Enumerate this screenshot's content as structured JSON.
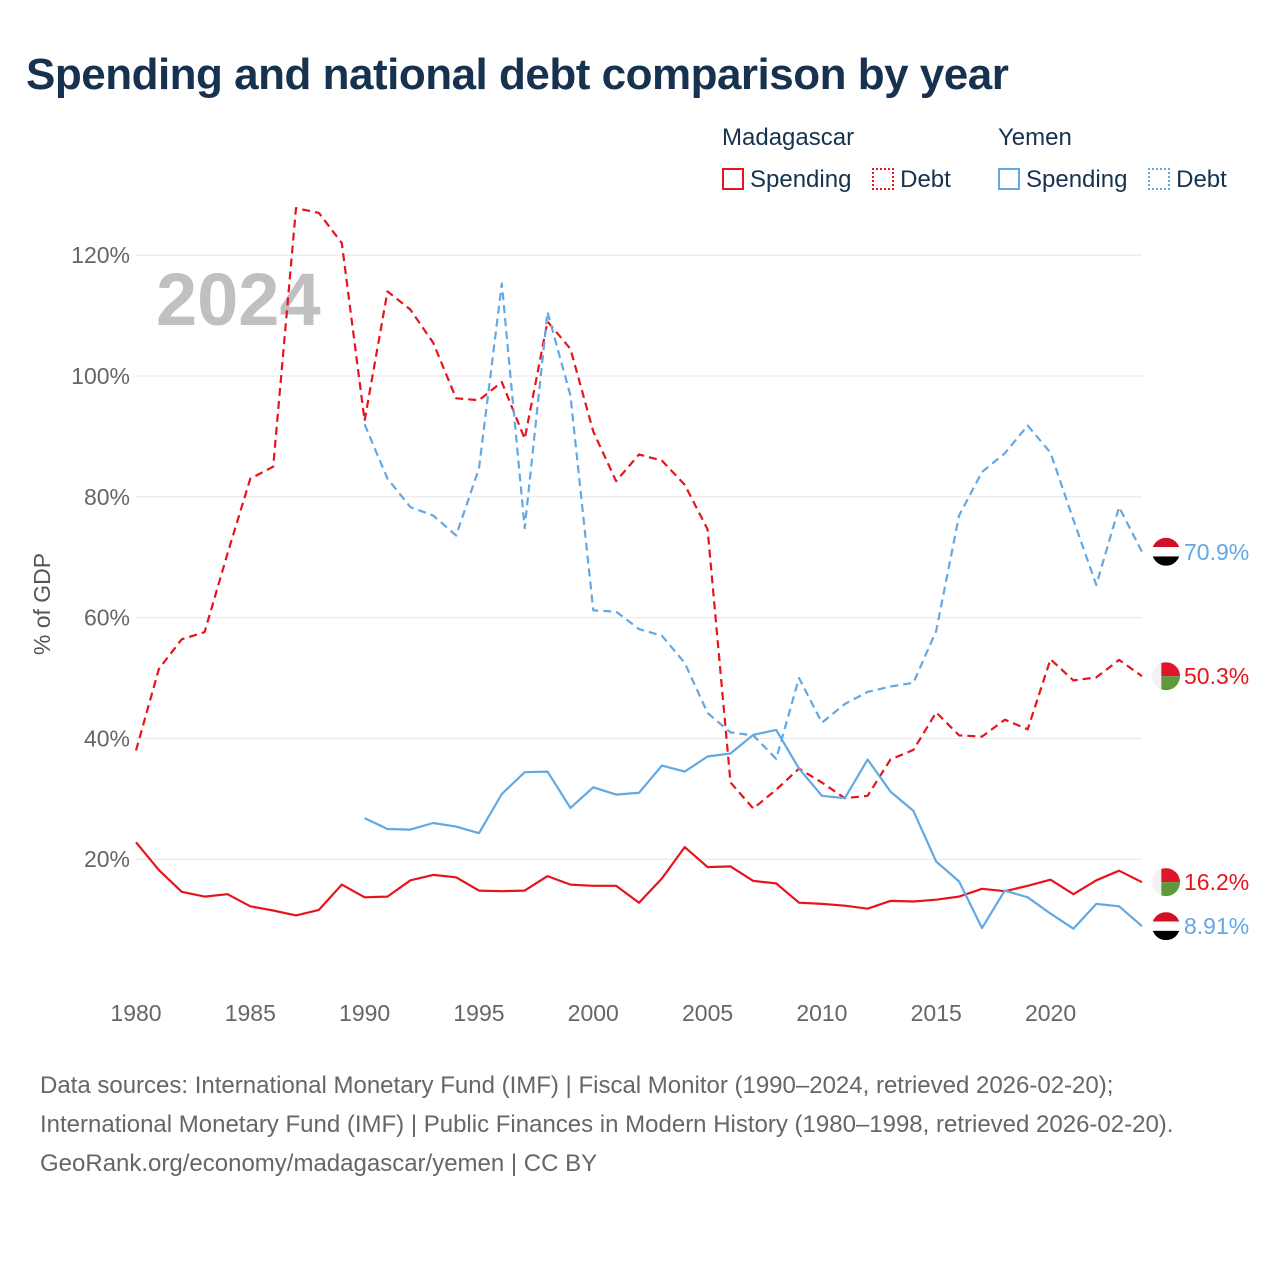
{
  "title": "Spending and national debt comparison by year",
  "colors": {
    "madagascar": "#e8141c",
    "yemen": "#62a8e4",
    "title": "#17324f",
    "grid": "#e6e6e6",
    "year_watermark": "#c0c0c0"
  },
  "legend": {
    "groups": [
      {
        "country": "Madagascar",
        "color": "#e8141c",
        "items": [
          {
            "label": "Spending",
            "style": "solid"
          },
          {
            "label": "Debt",
            "style": "dotted"
          }
        ]
      },
      {
        "country": "Yemen",
        "color": "#62a8e4",
        "items": [
          {
            "label": "Spending",
            "style": "solid"
          },
          {
            "label": "Debt",
            "style": "dotted"
          }
        ]
      }
    ]
  },
  "chart_data": {
    "type": "line",
    "title": "Spending and national debt comparison by year",
    "year_label": "2024",
    "ylabel": "% of GDP",
    "xlabel": "",
    "xlim": [
      1980,
      2024
    ],
    "ylim": [
      0,
      125
    ],
    "x_ticks": [
      1980,
      1985,
      1990,
      1995,
      2000,
      2005,
      2010,
      2015,
      2020
    ],
    "y_ticks": [
      20,
      40,
      60,
      80,
      100,
      120
    ],
    "y_tick_labels": [
      "20%",
      "40%",
      "60%",
      "80%",
      "100%",
      "120%"
    ],
    "grid": true,
    "series": [
      {
        "name": "Madagascar Debt",
        "country": "Madagascar",
        "measure": "Debt",
        "color": "#e8141c",
        "dash": "dashed",
        "x": [
          1980,
          1981,
          1982,
          1983,
          1984,
          1985,
          1986,
          1987,
          1988,
          1989,
          1990,
          1991,
          1992,
          1993,
          1994,
          1995,
          1996,
          1997,
          1998,
          1999,
          2000,
          2001,
          2002,
          2003,
          2004,
          2005,
          2006,
          2007,
          2008,
          2009,
          2010,
          2011,
          2012,
          2013,
          2014,
          2015,
          2016,
          2017,
          2018,
          2019,
          2020,
          2021,
          2022,
          2023,
          2024
        ],
        "values": [
          38.0,
          51.5,
          56.4,
          57.6,
          70.6,
          83.0,
          85.0,
          127.8,
          127.0,
          122.0,
          92.6,
          114.0,
          111.0,
          105.5,
          96.3,
          96.0,
          99.0,
          89.6,
          109.0,
          104.5,
          90.8,
          82.6,
          87.0,
          86.0,
          82.0,
          74.6,
          32.7,
          28.4,
          31.5,
          35.0,
          32.7,
          30.1,
          30.5,
          36.5,
          38.1,
          44.3,
          40.5,
          40.3,
          43.1,
          41.5,
          53.1,
          49.6,
          50.1,
          53.0,
          50.3
        ],
        "end_label": "50.3%"
      },
      {
        "name": "Yemen Debt",
        "country": "Yemen",
        "measure": "Debt",
        "color": "#62a8e4",
        "dash": "dashed",
        "x": [
          1990,
          1991,
          1992,
          1993,
          1994,
          1995,
          1996,
          1997,
          1998,
          1999,
          2000,
          2001,
          2002,
          2003,
          2004,
          2005,
          2006,
          2007,
          2008,
          2009,
          2010,
          2011,
          2012,
          2013,
          2014,
          2015,
          2016,
          2017,
          2018,
          2019,
          2020,
          2021,
          2022,
          2023,
          2024
        ],
        "values": [
          92.0,
          83.0,
          78.3,
          76.9,
          73.6,
          84.7,
          115.3,
          74.8,
          110.6,
          96.8,
          61.2,
          61.0,
          58.1,
          57.0,
          52.5,
          44.2,
          41.0,
          40.5,
          36.6,
          50.0,
          42.6,
          45.7,
          47.7,
          48.6,
          49.2,
          57.8,
          76.9,
          84.1,
          87.2,
          91.8,
          87.3,
          76.2,
          65.4,
          78.3,
          70.9
        ],
        "end_label": "70.9%"
      },
      {
        "name": "Madagascar Spending",
        "country": "Madagascar",
        "measure": "Spending",
        "color": "#e8141c",
        "dash": "solid",
        "x": [
          1980,
          1981,
          1982,
          1983,
          1984,
          1985,
          1986,
          1987,
          1988,
          1989,
          1990,
          1991,
          1992,
          1993,
          1994,
          1995,
          1996,
          1997,
          1998,
          1999,
          2000,
          2001,
          2002,
          2003,
          2004,
          2005,
          2006,
          2007,
          2008,
          2009,
          2010,
          2011,
          2012,
          2013,
          2014,
          2015,
          2016,
          2017,
          2018,
          2019,
          2020,
          2021,
          2022,
          2023,
          2024
        ],
        "values": [
          22.8,
          18.2,
          14.6,
          13.8,
          14.2,
          12.2,
          11.5,
          10.7,
          11.6,
          15.8,
          13.7,
          13.8,
          16.5,
          17.4,
          17.0,
          14.8,
          14.7,
          14.8,
          17.2,
          15.8,
          15.6,
          15.6,
          12.8,
          16.8,
          22.0,
          18.7,
          18.8,
          16.4,
          16.0,
          12.8,
          12.6,
          12.3,
          11.8,
          13.1,
          13.0,
          13.3,
          13.8,
          15.1,
          14.7,
          15.6,
          16.6,
          14.2,
          16.5,
          18.1,
          16.2
        ],
        "end_label": "16.2%"
      },
      {
        "name": "Yemen Spending",
        "country": "Yemen",
        "measure": "Spending",
        "color": "#62a8e4",
        "dash": "solid",
        "x": [
          1990,
          1991,
          1992,
          1993,
          1994,
          1995,
          1996,
          1997,
          1998,
          1999,
          2000,
          2001,
          2002,
          2003,
          2004,
          2005,
          2006,
          2007,
          2008,
          2009,
          2010,
          2011,
          2012,
          2013,
          2014,
          2015,
          2016,
          2017,
          2018,
          2019,
          2020,
          2021,
          2022,
          2023,
          2024
        ],
        "values": [
          26.8,
          25.0,
          24.9,
          26.0,
          25.4,
          24.3,
          30.8,
          34.4,
          34.5,
          28.5,
          31.9,
          30.7,
          31.0,
          35.5,
          34.5,
          37.0,
          37.5,
          40.6,
          41.4,
          35.0,
          30.5,
          30.1,
          36.5,
          31.2,
          28.0,
          19.6,
          16.3,
          8.6,
          14.8,
          13.7,
          11.0,
          8.5,
          12.6,
          12.2,
          8.91
        ],
        "end_label": "8.91%"
      }
    ]
  },
  "footer": {
    "sources": "Data sources: International Monetary Fund (IMF) | Fiscal Monitor (1990–2024, retrieved 2026-02-20); International Monetary Fund (IMF) | Public Finances in Modern History (1980–1998, retrieved 2026-02-20).",
    "credit": "GeoRank.org/economy/madagascar/yemen | CC BY"
  }
}
